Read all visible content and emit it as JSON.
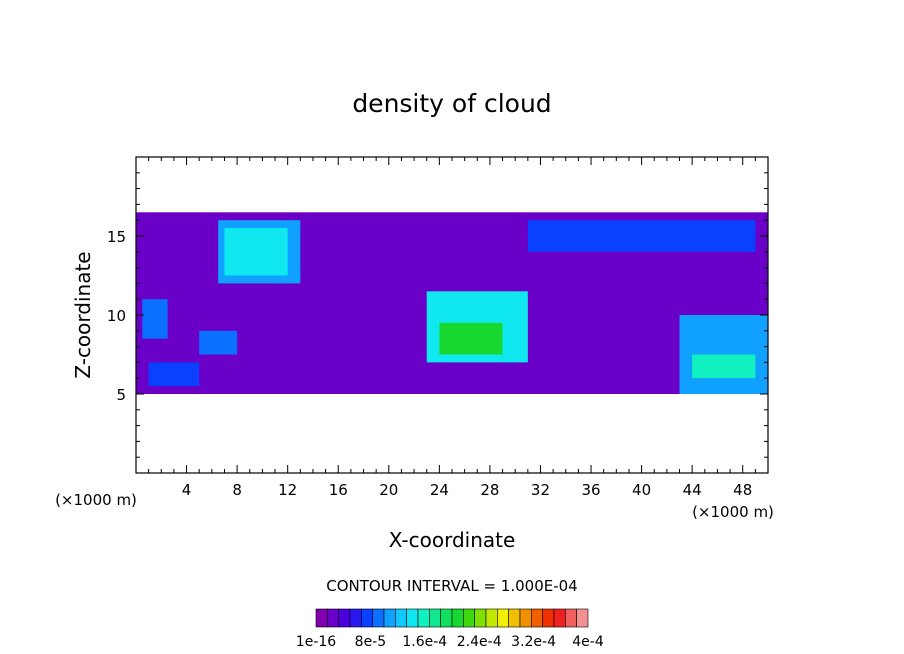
{
  "chart_data": {
    "type": "heatmap",
    "title": "density of cloud",
    "xlabel": "X-coordinate",
    "ylabel": "Z-coordinate",
    "x_unit_label": "(×1000 m)",
    "xlim": [
      0,
      50
    ],
    "ylim": [
      0,
      20
    ],
    "x_ticks": [
      4,
      8,
      12,
      16,
      20,
      24,
      28,
      32,
      36,
      40,
      44,
      48
    ],
    "y_ticks": [
      5,
      10,
      15
    ],
    "contour_interval_text": "CONTOUR INTERVAL = 1.000E-04",
    "colorbar_labels": [
      "1e-16",
      "8e-5",
      "1.6e-4",
      "2.4e-4",
      "3.2e-4",
      "4e-4"
    ],
    "colorbar_colors": [
      "#8000b0",
      "#6a00c8",
      "#4a00dc",
      "#2a18f0",
      "#0a40ff",
      "#0a70ff",
      "#10a0ff",
      "#10c8ff",
      "#10e8f0",
      "#10f0c0",
      "#10e890",
      "#10e060",
      "#18d830",
      "#40d810",
      "#80e000",
      "#c0e800",
      "#f0f000",
      "#f0c000",
      "#f09000",
      "#f06000",
      "#f03000",
      "#f02020",
      "#f06060",
      "#f09090"
    ],
    "density_regions": [
      {
        "x": [
          0,
          50
        ],
        "z": [
          5,
          16.5
        ],
        "level": 1
      },
      {
        "x": [
          0.5,
          2.5
        ],
        "z": [
          8.5,
          11
        ],
        "level": 5
      },
      {
        "x": [
          1,
          5
        ],
        "z": [
          5.5,
          7
        ],
        "level": 4
      },
      {
        "x": [
          5,
          8
        ],
        "z": [
          7.5,
          9
        ],
        "level": 5
      },
      {
        "x": [
          6.5,
          13
        ],
        "z": [
          12,
          16
        ],
        "level": 6
      },
      {
        "x": [
          7,
          12
        ],
        "z": [
          12.5,
          15.5
        ],
        "level": 8
      },
      {
        "x": [
          23,
          31
        ],
        "z": [
          7,
          11.5
        ],
        "level": 8
      },
      {
        "x": [
          24,
          29
        ],
        "z": [
          7.5,
          9.5
        ],
        "level": 12
      },
      {
        "x": [
          31,
          49
        ],
        "z": [
          14,
          16
        ],
        "level": 4
      },
      {
        "x": [
          43,
          50
        ],
        "z": [
          5,
          10
        ],
        "level": 6
      },
      {
        "x": [
          44,
          49
        ],
        "z": [
          6,
          7.5
        ],
        "level": 9
      }
    ]
  }
}
